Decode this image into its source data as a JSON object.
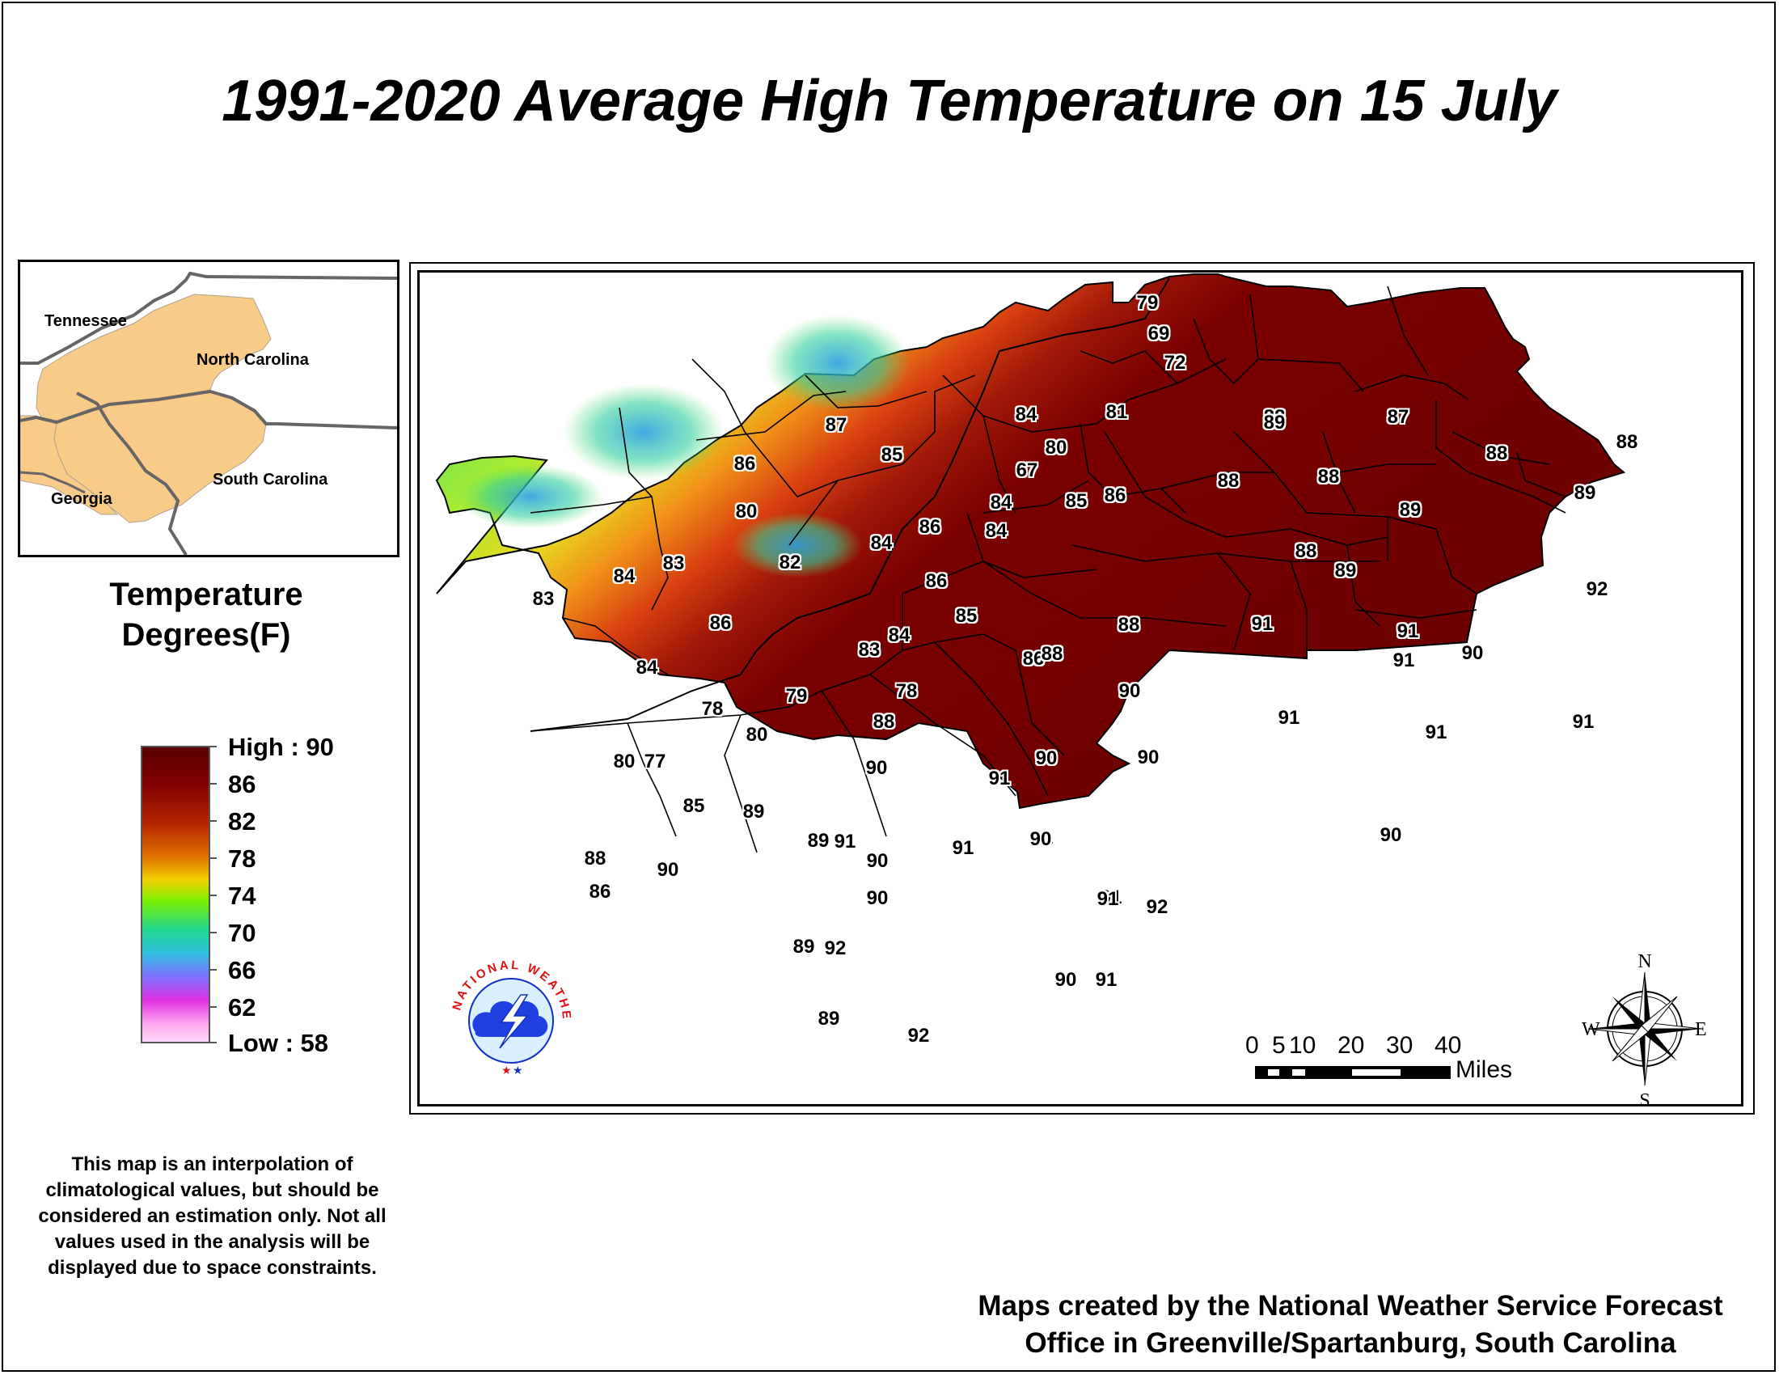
{
  "title": "1991-2020 Average High Temperature on 15 July",
  "inset_map": {
    "states": [
      "Tennessee",
      "North Carolina",
      "Georgia",
      "South Carolina"
    ],
    "fill_color": "#f8cc88"
  },
  "legend": {
    "title_line1": "Temperature",
    "title_line2": "Degrees(F)",
    "labels": [
      "High : 90",
      "86",
      "82",
      "78",
      "74",
      "70",
      "66",
      "62",
      "Low : 58"
    ]
  },
  "scale_bar": {
    "ticks": [
      "0",
      "5",
      "10",
      "20",
      "30",
      "40"
    ],
    "units": "Miles"
  },
  "compass": {
    "n": "N",
    "s": "S",
    "e": "E",
    "w": "W"
  },
  "logo": {
    "text": "NATIONAL WEATHER SERVICE"
  },
  "disclaimer": "This map is an interpolation of climatological values, but should be considered an estimation only. Not all values used in the analysis will be displayed due to space constraints.",
  "credit_line1": "Maps created by the National Weather Service Forecast",
  "credit_line2": "Office in Greenville/Spartanburg, South Carolina",
  "map_values": [
    "79",
    "69",
    "72",
    "81",
    "84",
    "80",
    "67",
    "84",
    "84",
    "85",
    "86",
    "87",
    "85",
    "86",
    "80",
    "82",
    "84",
    "86",
    "86",
    "85",
    "84",
    "83",
    "83",
    "84",
    "84",
    "86",
    "83",
    "79",
    "78",
    "86",
    "78",
    "88",
    "80",
    "80",
    "77",
    "85",
    "89",
    "88",
    "86",
    "90",
    "89",
    "91",
    "90",
    "90",
    "89",
    "92",
    "89",
    "92",
    "90",
    "91",
    "90",
    "91",
    "91",
    "90",
    "90",
    "91",
    "90",
    "91",
    "90",
    "91",
    "92",
    "88",
    "88",
    "88",
    "89",
    "88",
    "89",
    "88",
    "87",
    "88",
    "88",
    "89",
    "88",
    "91",
    "91",
    "90",
    "92",
    "91",
    "89",
    "91",
    "91",
    "91",
    "90"
  ]
}
